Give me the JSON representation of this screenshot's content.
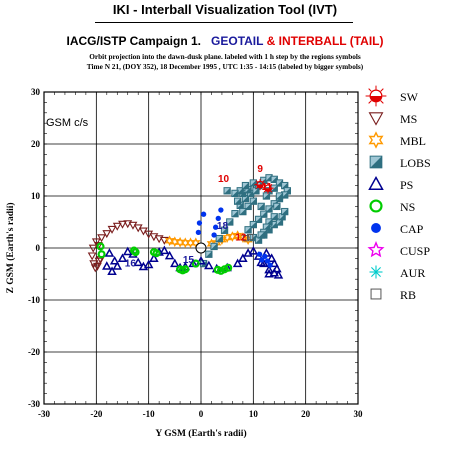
{
  "header": {
    "title": "IKI - Interball Visualization Tool (IVT)",
    "campaign_prefix": "IACG/ISTP Campaign 1.",
    "geotail": "GEOTAIL",
    "amp": "&",
    "interball": "INTERBALL (TAIL)",
    "line1": "Orbit projection into the dawn-dusk plane. labeled with 1 h step by the regions symbols",
    "line2": "Time N 21, (DOY 352), 18 December 1995 ,  UTC 1:35 - 14:15 (labeled by bigger symbols)"
  },
  "colors": {
    "geotail": "#1a1a9c",
    "interball": "#e00000",
    "sw": "#e00000",
    "ms": "#7a1d1d",
    "mbl": "#ff9900",
    "lobs": "#2f6f80",
    "ps": "#000090",
    "ns": "#00cc00",
    "cap": "#0033ee",
    "cusp": "#ee00ee",
    "aur": "#00cccc",
    "rb": "#555555"
  },
  "chart_data": {
    "type": "scatter",
    "frame_label": "GSM c/s",
    "xlabel": "Y GSM (Earth's radii)",
    "ylabel": "Z GSM (Earth's radii)",
    "xlim": [
      -30,
      30
    ],
    "ylim": [
      -30,
      30
    ],
    "xticks": [
      -30,
      -20,
      -10,
      0,
      10,
      20,
      30
    ],
    "yticks": [
      -30,
      -20,
      -10,
      0,
      10,
      20,
      30
    ],
    "grid": true,
    "legend_position": "right",
    "legend": [
      {
        "key": "sw",
        "label": "SW"
      },
      {
        "key": "ms",
        "label": "MS"
      },
      {
        "key": "mbl",
        "label": "MBL"
      },
      {
        "key": "lobs",
        "label": "LOBS"
      },
      {
        "key": "ps",
        "label": "PS"
      },
      {
        "key": "ns",
        "label": "NS"
      },
      {
        "key": "cap",
        "label": "CAP"
      },
      {
        "key": "cusp",
        "label": "CUSP"
      },
      {
        "key": "aur",
        "label": "AUR"
      },
      {
        "key": "rb",
        "label": "RB"
      }
    ],
    "series": [
      {
        "key": "ms",
        "points": [
          [
            -20.5,
            -3
          ],
          [
            -20.8,
            -1.5
          ],
          [
            -20.6,
            0
          ],
          [
            -20,
            1.2
          ],
          [
            -19,
            2
          ],
          [
            -18,
            2.8
          ],
          [
            -17,
            3.6
          ],
          [
            -16,
            4.2
          ],
          [
            -15,
            4.6
          ],
          [
            -14,
            4.7
          ],
          [
            -13,
            4.4
          ],
          [
            -12,
            3.9
          ],
          [
            -11,
            3.3
          ],
          [
            -10,
            2.7
          ],
          [
            -9,
            2.2
          ],
          [
            -8,
            1.8
          ],
          [
            -7,
            1.5
          ],
          [
            -19.5,
            -2.5
          ],
          [
            -20.2,
            -3.8
          ],
          [
            -19.8,
            -3.5
          ],
          [
            -19.6,
            0.5
          ],
          [
            -19.2,
            -2.2
          ]
        ]
      },
      {
        "key": "mbl",
        "points": [
          [
            -6,
            1.4
          ],
          [
            -5,
            1.2
          ],
          [
            -4,
            1.1
          ],
          [
            -3,
            1.0
          ],
          [
            -2,
            1.0
          ],
          [
            -1,
            1.0
          ],
          [
            4,
            1.6
          ],
          [
            5,
            2.0
          ],
          [
            6,
            2.2
          ],
          [
            7,
            2.4
          ],
          [
            8,
            2.0
          ],
          [
            9,
            1.6
          ],
          [
            3,
            1.0
          ],
          [
            2,
            0.8
          ]
        ]
      },
      {
        "key": "lobs",
        "points": [
          [
            0.5,
            -3
          ],
          [
            1.5,
            -1.2
          ],
          [
            2.5,
            0.3
          ],
          [
            3.5,
            1.8
          ],
          [
            4.5,
            3.4
          ],
          [
            5.5,
            5
          ],
          [
            6.5,
            6.6
          ],
          [
            7.5,
            8.2
          ],
          [
            8.5,
            9.5
          ],
          [
            9.5,
            10.5
          ],
          [
            10.5,
            11
          ],
          [
            11,
            12
          ],
          [
            12,
            13
          ],
          [
            13,
            13.5
          ],
          [
            14,
            13.2
          ],
          [
            15,
            12.5
          ],
          [
            16,
            12
          ],
          [
            16.5,
            11
          ],
          [
            16,
            10.2
          ],
          [
            15,
            9.5
          ],
          [
            14,
            8.5
          ],
          [
            13,
            7.5
          ],
          [
            12,
            6.5
          ],
          [
            11,
            5.5
          ],
          [
            10,
            4.5
          ],
          [
            9,
            3.5
          ],
          [
            10,
            2
          ],
          [
            11,
            1.5
          ],
          [
            12,
            2.5
          ],
          [
            13,
            3.5
          ],
          [
            14,
            4.5
          ],
          [
            15,
            5
          ],
          [
            15.5,
            6
          ],
          [
            16,
            7
          ],
          [
            14,
            6
          ],
          [
            13,
            5
          ],
          [
            12.5,
            4
          ],
          [
            12,
            3
          ],
          [
            11.5,
            2.5
          ],
          [
            14.5,
            8
          ],
          [
            15,
            10
          ],
          [
            13,
            11
          ],
          [
            10,
            9
          ],
          [
            9,
            8
          ],
          [
            8,
            7
          ],
          [
            7,
            9
          ],
          [
            8,
            10.5
          ],
          [
            9,
            11.2
          ],
          [
            12.5,
            10
          ],
          [
            11.5,
            8
          ],
          [
            14,
            11.5
          ],
          [
            10,
            12.5
          ],
          [
            7.5,
            11
          ],
          [
            6.5,
            10.5
          ],
          [
            5,
            11
          ],
          [
            8.5,
            12
          ]
        ]
      },
      {
        "key": "ps",
        "points": [
          [
            -16,
            -3.5
          ],
          [
            -15,
            -2
          ],
          [
            -14,
            -0.7
          ],
          [
            -13,
            -1.2
          ],
          [
            -12,
            -2.8
          ],
          [
            -11,
            -3.6
          ],
          [
            -10,
            -3.2
          ],
          [
            -9,
            -2
          ],
          [
            -8,
            -0.8
          ],
          [
            -7,
            -0.5
          ],
          [
            -6,
            -1.5
          ],
          [
            -5,
            -3
          ],
          [
            -4,
            -3.8
          ],
          [
            -3,
            -3.6
          ],
          [
            -1.5,
            -3
          ],
          [
            0,
            -2.5
          ],
          [
            1.5,
            -3.4
          ],
          [
            3,
            -4
          ],
          [
            5,
            -3.8
          ],
          [
            7,
            -3
          ],
          [
            8,
            -2
          ],
          [
            9,
            -1
          ],
          [
            10,
            -0.6
          ],
          [
            11,
            -1.6
          ],
          [
            12,
            -3
          ],
          [
            13,
            -4.2
          ],
          [
            14,
            -4.8
          ],
          [
            14.5,
            -4
          ],
          [
            13.5,
            -2
          ],
          [
            12.5,
            -1
          ],
          [
            11.5,
            -2.8
          ],
          [
            -17,
            -4.5
          ],
          [
            -18,
            -3.5
          ],
          [
            -17.5,
            -1
          ],
          [
            -16.5,
            -2.5
          ],
          [
            13,
            -5
          ],
          [
            14,
            -3
          ],
          [
            14.8,
            -5.2
          ]
        ]
      },
      {
        "key": "ns",
        "points": [
          [
            -19.2,
            0.3
          ],
          [
            -19,
            -1.2
          ],
          [
            -12.8,
            -0.5
          ],
          [
            -12.5,
            -0.8
          ],
          [
            -4,
            -4.1
          ],
          [
            -3.5,
            -4.3
          ],
          [
            -3,
            -4.1
          ],
          [
            -8.5,
            -1
          ],
          [
            -1,
            -3
          ],
          [
            3.2,
            -4.2
          ],
          [
            3.8,
            -4.4
          ],
          [
            4.5,
            -4.1
          ],
          [
            5.2,
            -3.8
          ],
          [
            -9,
            -0.8
          ]
        ]
      },
      {
        "key": "cap",
        "points": [
          [
            2.5,
            2.5
          ],
          [
            2.8,
            4
          ],
          [
            3.3,
            5.7
          ],
          [
            3.8,
            7.3
          ],
          [
            0.5,
            6.5
          ],
          [
            -0.3,
            4.8
          ],
          [
            -0.5,
            3
          ],
          [
            11.2,
            -1.2
          ],
          [
            12.2,
            -1.6
          ],
          [
            12.7,
            -2.5
          ],
          [
            13.2,
            -3.3
          ],
          [
            11.6,
            -2.3
          ]
        ]
      },
      {
        "key": "sw",
        "points": [
          [
            11.3,
            12.2
          ],
          [
            12.8,
            11.5
          ]
        ]
      },
      {
        "key": "rb",
        "points": [
          [
            8.6,
            1.9
          ],
          [
            9.4,
            2.1
          ]
        ]
      }
    ],
    "labels": [
      {
        "text": "9",
        "x": 11.3,
        "y": 14.6,
        "series": "interball"
      },
      {
        "text": "10",
        "x": 4.3,
        "y": 12.7,
        "series": "interball"
      },
      {
        "text": "11",
        "x": 12.6,
        "y": 11.2,
        "series": "interball"
      },
      {
        "text": "12",
        "x": 7.6,
        "y": 1.4,
        "series": "interball"
      },
      {
        "text": "18",
        "x": 4.1,
        "y": 3.7,
        "series": "geotail"
      },
      {
        "text": "16",
        "x": -13.5,
        "y": -3.6,
        "series": "geotail"
      },
      {
        "text": "15",
        "x": -2.4,
        "y": -2.9,
        "series": "geotail"
      }
    ],
    "earth": {
      "x": 0,
      "y": 0
    }
  }
}
